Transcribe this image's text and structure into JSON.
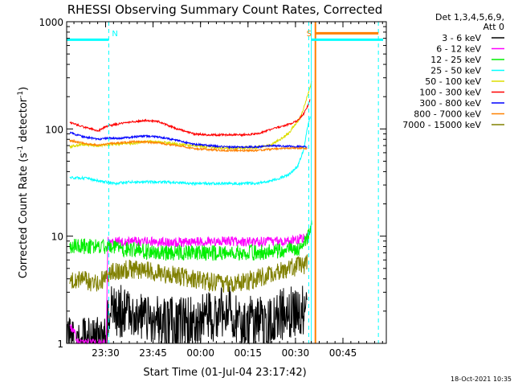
{
  "chart_data": {
    "type": "line",
    "title": "RHESSI Observing Summary Count Rates, Corrected",
    "xlabel": "Start Time (01-Jul-04 23:17:42)",
    "ylabel_main": "Corrected Count Rate (s",
    "ylabel_sup1": "-1",
    "ylabel_mid": " detector",
    "ylabel_sup2": "-1",
    "ylabel_end": ")",
    "x_unit": "minutes since 23:17:42",
    "xlim": [
      0,
      101
    ],
    "ylim": [
      1,
      1000
    ],
    "yscale": "log",
    "x_ticks": [
      {
        "label": "23:30",
        "value": 12.3
      },
      {
        "label": "23:45",
        "value": 27.3
      },
      {
        "label": "00:00",
        "value": 42.3
      },
      {
        "label": "00:15",
        "value": 57.3
      },
      {
        "label": "00:30",
        "value": 72.3
      },
      {
        "label": "00:45",
        "value": 87.3
      }
    ],
    "y_ticks": [
      {
        "label": "1",
        "value": 1
      },
      {
        "label": "10",
        "value": 10
      },
      {
        "label": "100",
        "value": 100
      },
      {
        "label": "1000",
        "value": 1000
      }
    ],
    "legend_header": [
      "Det 1,3,4,5,6,9,",
      "Att 0"
    ],
    "legend_position": "right",
    "series": [
      {
        "name": "3 - 6 keV",
        "color": "#000000",
        "x": [
          0,
          12,
          13,
          20,
          30,
          40,
          50,
          60,
          70,
          76
        ],
        "y": [
          1,
          1,
          2,
          2,
          1.5,
          1.6,
          2,
          1.5,
          2,
          2
        ]
      },
      {
        "name": "6 - 12 keV",
        "color": "#ff00ff",
        "x": [
          1,
          4,
          12.5,
          13,
          20,
          30,
          40,
          50,
          60,
          70,
          74,
          76
        ],
        "y": [
          1.5,
          1,
          1,
          9,
          9,
          8.8,
          8.8,
          9,
          8.8,
          9,
          9.5,
          10
        ]
      },
      {
        "name": "12 - 25 keV",
        "color": "#00ee00",
        "x": [
          1,
          12,
          20,
          30,
          40,
          50,
          60,
          70,
          74,
          76,
          77.5
        ],
        "y": [
          8,
          8,
          7.5,
          7,
          7,
          7,
          7,
          7.5,
          8,
          9,
          13
        ]
      },
      {
        "name": "25 - 50 keV",
        "color": "#00ffff",
        "x": [
          1,
          5,
          10,
          15,
          20,
          30,
          40,
          50,
          60,
          65,
          70,
          73,
          75,
          76,
          77
        ],
        "y": [
          35,
          35,
          33,
          31,
          32,
          32,
          31,
          31,
          31,
          33,
          37,
          45,
          65,
          100,
          130
        ]
      },
      {
        "name": "50 - 100 keV",
        "color": "#dddd00",
        "x": [
          1,
          5,
          10,
          15,
          20,
          25,
          30,
          40,
          50,
          60,
          65,
          70,
          74,
          76,
          77.5
        ],
        "y": [
          68,
          72,
          70,
          72,
          73,
          76,
          75,
          70,
          66,
          67,
          72,
          90,
          130,
          200,
          280
        ]
      },
      {
        "name": "100 - 300 keV",
        "color": "#ff0000",
        "x": [
          1,
          5,
          10,
          13,
          17,
          21,
          25,
          29,
          35,
          40,
          45,
          50,
          55,
          60,
          65,
          70,
          73,
          75,
          76,
          77
        ],
        "y": [
          115,
          105,
          96,
          107,
          112,
          117,
          120,
          117,
          100,
          90,
          88,
          88,
          88,
          90,
          100,
          110,
          120,
          140,
          160,
          190
        ]
      },
      {
        "name": "300 - 800 keV",
        "color": "#0000ff",
        "x": [
          1,
          5,
          10,
          13,
          17,
          21,
          25,
          29,
          35,
          40,
          45,
          50,
          55,
          60,
          65,
          70,
          74,
          76
        ],
        "y": [
          92,
          85,
          80,
          82,
          82,
          84,
          86,
          84,
          78,
          72,
          70,
          68,
          68,
          68,
          70,
          69,
          68,
          68
        ]
      },
      {
        "name": "800 - 7000 keV",
        "color": "#ff8000",
        "x": [
          1,
          5,
          10,
          13,
          17,
          21,
          25,
          29,
          35,
          40,
          45,
          50,
          55,
          60,
          65,
          70,
          74,
          76
        ],
        "y": [
          78,
          74,
          70,
          73,
          74,
          76,
          76,
          74,
          70,
          66,
          64,
          63,
          63,
          63,
          65,
          66,
          66,
          66
        ]
      },
      {
        "name": "7000 - 15000 keV",
        "color": "#808000",
        "x": [
          1,
          5,
          10,
          13,
          20,
          30,
          40,
          50,
          60,
          70,
          76
        ],
        "y": [
          4,
          4,
          3.5,
          4.5,
          5,
          4.5,
          4,
          3.5,
          4,
          5,
          5.5
        ]
      }
    ],
    "orbit_markers": [
      {
        "label": "N",
        "x": 13.3,
        "color": "#00ffff",
        "style": "dashed"
      },
      {
        "label": "",
        "x": 76.5,
        "color": "#00ffff",
        "style": "dashed"
      },
      {
        "label": "S",
        "x": 77.3,
        "color": "#00ffff",
        "style": "solid"
      },
      {
        "label": "",
        "x": 98.5,
        "color": "#00ffff",
        "style": "dashed"
      },
      {
        "label": "",
        "x": 78.6,
        "color": "#ff8000",
        "style": "solid"
      }
    ],
    "state_bars": [
      {
        "x0": 0,
        "x1": 13.3,
        "y": 680,
        "color": "#00ffff"
      },
      {
        "x0": 77.3,
        "x1": 100,
        "y": 680,
        "color": "#00ffff"
      },
      {
        "x0": 78.6,
        "x1": 98.5,
        "y": 780,
        "color": "#ff8000"
      }
    ]
  },
  "footer": {
    "timestamp": "18-Oct-2021 10:35"
  }
}
